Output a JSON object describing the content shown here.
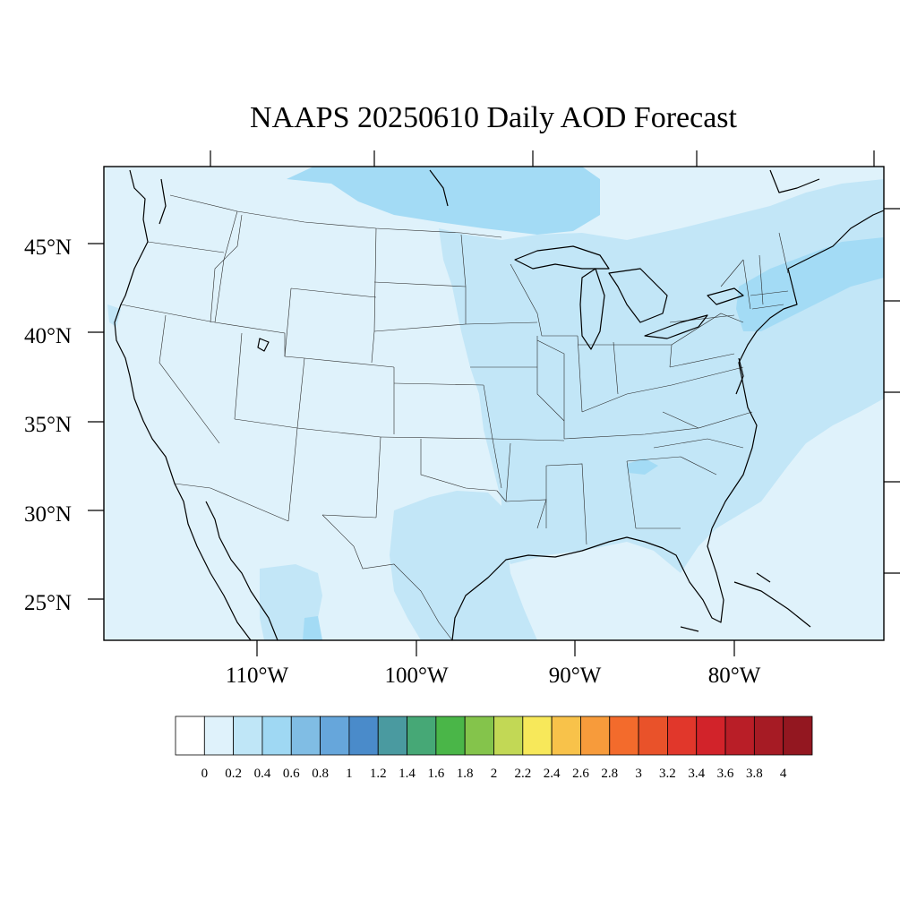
{
  "title": "NAAPS 20250610 Daily AOD Forecast",
  "map": {
    "projection": "cylindrical-equidistant",
    "lon_range": [
      -119,
      -70
    ],
    "lat_range": [
      22.7,
      49.4
    ],
    "lat_labels": [
      "25°N",
      "30°N",
      "35°N",
      "40°N",
      "45°N"
    ],
    "lon_labels": [
      "110°W",
      "100°W",
      "90°W",
      "80°W"
    ],
    "background_aod_range": "0.2-0.4",
    "features": [
      "coastlines",
      "state-boundaries",
      "great-lakes"
    ]
  },
  "aod_regions": [
    {
      "name": "background",
      "aod_bin": "0.2-0.4",
      "color": "#dff2fb"
    },
    {
      "name": "central-eastern-us",
      "aod_bin": "0.4-0.6",
      "color": "#c2e6f7"
    },
    {
      "name": "northern-plains-canada-border",
      "aod_bin": "0.6-0.8",
      "color": "#a3dbf5"
    },
    {
      "name": "northeast-new-england",
      "aod_bin": "0.6-0.8",
      "color": "#a3dbf5"
    },
    {
      "name": "south-texas",
      "aod_bin": "0.4-0.6",
      "color": "#c2e6f7"
    },
    {
      "name": "northern-mexico",
      "aod_bin": "0.4-0.6",
      "color": "#c2e6f7"
    }
  ],
  "colorbar": {
    "labels": [
      "0",
      "0.2",
      "0.4",
      "0.6",
      "0.8",
      "1",
      "1.2",
      "1.4",
      "1.6",
      "1.8",
      "2",
      "2.2",
      "2.4",
      "2.6",
      "2.8",
      "3",
      "3.2",
      "3.4",
      "3.6",
      "3.8",
      "4"
    ],
    "colors": [
      "#ffffff",
      "#dff2fb",
      "#bfe6f7",
      "#9fd8f3",
      "#80bde4",
      "#66a6db",
      "#4a8bca",
      "#4a9aa0",
      "#46a876",
      "#4ab648",
      "#84c44b",
      "#c2d855",
      "#f7e85a",
      "#f8c24a",
      "#f79b3b",
      "#f36b2c",
      "#e9522a",
      "#e1372b",
      "#d2232a",
      "#b91e27",
      "#a61b24",
      "#931720"
    ]
  }
}
